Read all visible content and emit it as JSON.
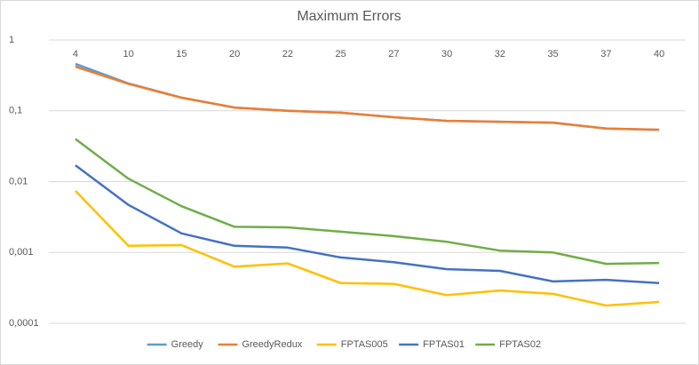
{
  "chart_data": {
    "type": "line",
    "title": "Maximum Errors",
    "categories": [
      "4",
      "10",
      "15",
      "20",
      "22",
      "25",
      "27",
      "30",
      "32",
      "35",
      "37",
      "40"
    ],
    "log_scale": true,
    "grid": true,
    "legend": "bottom",
    "ylim": [
      0.0001,
      1
    ],
    "yticks": [
      {
        "value": 0.0001,
        "label": "0,0001"
      },
      {
        "value": 0.001,
        "label": "0,001"
      },
      {
        "value": 0.01,
        "label": "0,01"
      },
      {
        "value": 0.1,
        "label": "0,1"
      },
      1
    ],
    "series": [
      {
        "name": "Greedy",
        "color": "#5b9bd5",
        "values": [
          0.46,
          0.243,
          0.153,
          0.111,
          0.1,
          0.094,
          0.081,
          0.072,
          0.07,
          0.068,
          0.056,
          0.054
        ]
      },
      {
        "name": "GreedyRedux",
        "color": "#ed7d31",
        "values": [
          0.42,
          0.24,
          0.153,
          0.111,
          0.1,
          0.094,
          0.081,
          0.072,
          0.07,
          0.068,
          0.056,
          0.054
        ]
      },
      {
        "name": "FPTAS005",
        "color": "#ffc000",
        "values": [
          0.0074,
          0.00124,
          0.00127,
          0.00063,
          0.0007,
          0.00037,
          0.00036,
          0.00025,
          0.00029,
          0.00026,
          0.000178,
          0.0002
        ]
      },
      {
        "name": "FPTAS01",
        "color": "#4472c4",
        "values": [
          0.017,
          0.0047,
          0.00186,
          0.00124,
          0.00117,
          0.00085,
          0.00073,
          0.00058,
          0.00055,
          0.00039,
          0.00041,
          0.00037
        ]
      },
      {
        "name": "FPTAS02",
        "color": "#70ad47",
        "values": [
          0.04,
          0.011,
          0.0045,
          0.0023,
          0.00226,
          0.00196,
          0.0017,
          0.00141,
          0.00106,
          0.001,
          0.00069,
          0.00071
        ]
      }
    ]
  }
}
